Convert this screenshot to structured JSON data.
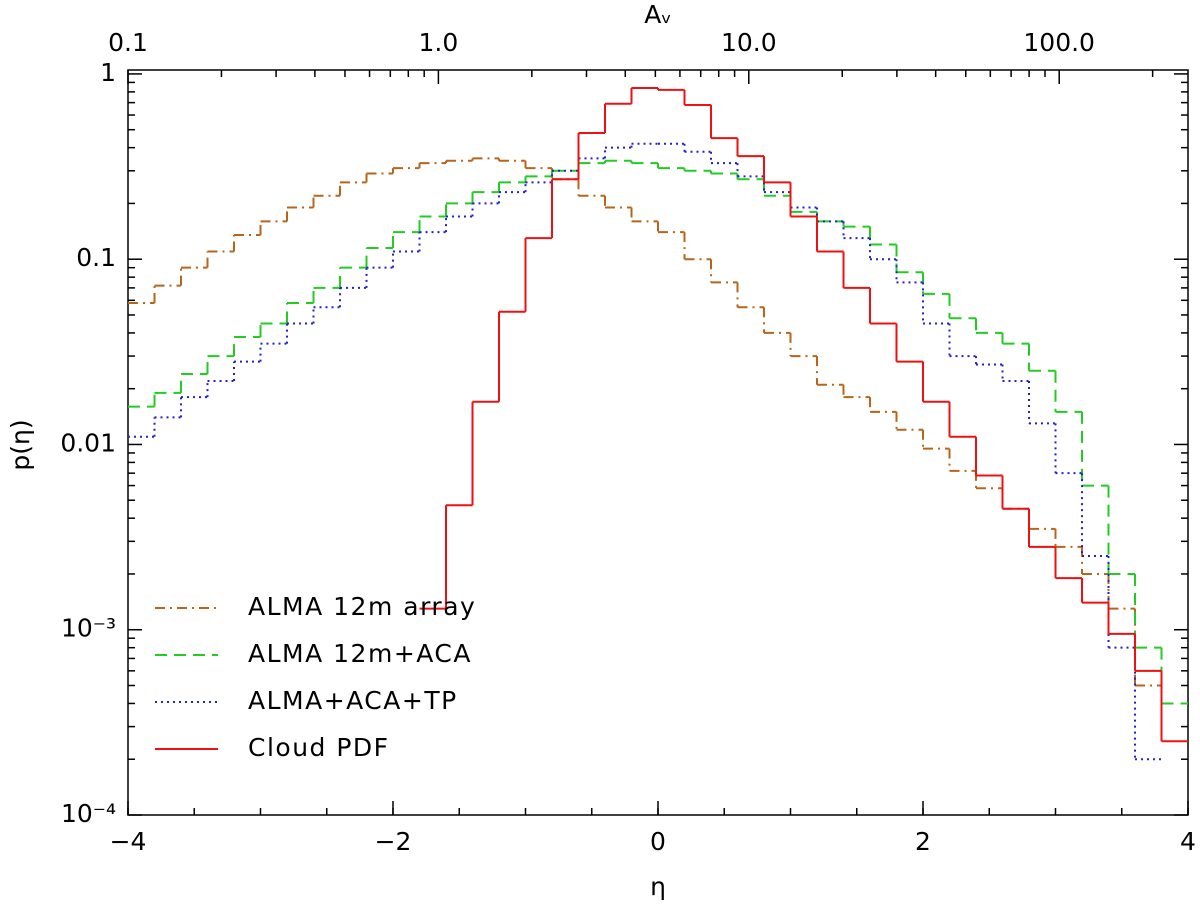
{
  "chart_data": {
    "type": "histogram",
    "xlabel": "η",
    "ylabel": "p(η)",
    "x2label": "Aᵥ",
    "bins": [
      -4,
      -3.8,
      -3.6,
      -3.4,
      -3.2,
      -3,
      -2.8,
      -2.6,
      -2.4,
      -2.2,
      -2,
      -1.8,
      -1.6,
      -1.4,
      -1.2,
      -1,
      -0.8,
      -0.6,
      -0.4,
      -0.2,
      0,
      0.2,
      0.4,
      0.6,
      0.8,
      1,
      1.2,
      1.4,
      1.6,
      1.8,
      2,
      2.2,
      2.4,
      2.6,
      2.8,
      3,
      3.2,
      3.4,
      3.6,
      3.8,
      4
    ],
    "series": [
      {
        "name": "ALMA 12m array",
        "color": "#b8651b",
        "linestyle": "dashdot",
        "values": [
          0.058,
          0.072,
          0.09,
          0.11,
          0.135,
          0.16,
          0.19,
          0.22,
          0.26,
          0.29,
          0.31,
          0.33,
          0.34,
          0.35,
          0.34,
          0.31,
          0.27,
          0.22,
          0.19,
          0.16,
          0.14,
          0.1,
          0.075,
          0.055,
          0.04,
          0.03,
          0.021,
          0.018,
          0.015,
          0.012,
          0.0095,
          0.0072,
          0.0058,
          0.0045,
          0.0035,
          0.0028,
          0.002,
          0.0013,
          0.0005,
          null
        ]
      },
      {
        "name": "ALMA 12m+ACA",
        "color": "#22cc22",
        "linestyle": "dashed",
        "values": [
          0.016,
          0.019,
          0.024,
          0.03,
          0.038,
          0.045,
          0.058,
          0.07,
          0.09,
          0.115,
          0.14,
          0.17,
          0.2,
          0.23,
          0.26,
          0.28,
          0.3,
          0.33,
          0.34,
          0.33,
          0.31,
          0.3,
          0.29,
          0.27,
          0.22,
          0.18,
          0.16,
          0.15,
          0.12,
          0.085,
          0.065,
          0.048,
          0.04,
          0.035,
          0.025,
          0.015,
          0.006,
          0.002,
          0.0008,
          0.0004
        ]
      },
      {
        "name": "ALMA+ACA+TP",
        "color": "#2222cc",
        "linestyle": "dotted",
        "values": [
          0.011,
          0.014,
          0.018,
          0.022,
          0.028,
          0.035,
          0.045,
          0.055,
          0.07,
          0.09,
          0.11,
          0.14,
          0.17,
          0.2,
          0.23,
          0.26,
          0.3,
          0.35,
          0.4,
          0.42,
          0.42,
          0.38,
          0.33,
          0.28,
          0.23,
          0.19,
          0.16,
          0.13,
          0.1,
          0.075,
          0.045,
          0.03,
          0.027,
          0.022,
          0.013,
          0.007,
          0.0025,
          0.0008,
          0.0002,
          null
        ]
      },
      {
        "name": "Cloud PDF",
        "color": "#ee1111",
        "linestyle": "solid",
        "values": [
          null,
          null,
          null,
          null,
          null,
          null,
          null,
          null,
          null,
          null,
          null,
          0.0013,
          0.0047,
          0.017,
          0.052,
          0.13,
          0.27,
          0.48,
          0.69,
          0.84,
          0.82,
          0.68,
          0.45,
          0.36,
          0.26,
          0.17,
          0.11,
          0.07,
          0.045,
          0.028,
          0.017,
          0.011,
          0.0068,
          0.0045,
          0.0028,
          0.0019,
          0.0014,
          0.00095,
          0.0006,
          0.00025
        ]
      }
    ],
    "xlim": [
      -4,
      4
    ],
    "xticks": [
      {
        "value": -4,
        "label": "−4"
      },
      {
        "value": -2,
        "label": "−2"
      },
      0,
      2,
      4
    ],
    "ylim": [
      0.0001,
      1.05
    ],
    "ylog": true,
    "yticks": [
      {
        "value": 0.0001,
        "label": "10⁻⁴"
      },
      {
        "value": 0.001,
        "label": "10⁻³"
      },
      0.01,
      0.1,
      1
    ],
    "x2lim": [
      0.1,
      260
    ],
    "x2log": true,
    "x2ticks": [
      0.1,
      {
        "value": 1,
        "label": "1.0"
      },
      {
        "value": 10,
        "label": "10.0"
      },
      {
        "value": 100,
        "label": "100.0"
      }
    ],
    "legend": "lower left"
  }
}
